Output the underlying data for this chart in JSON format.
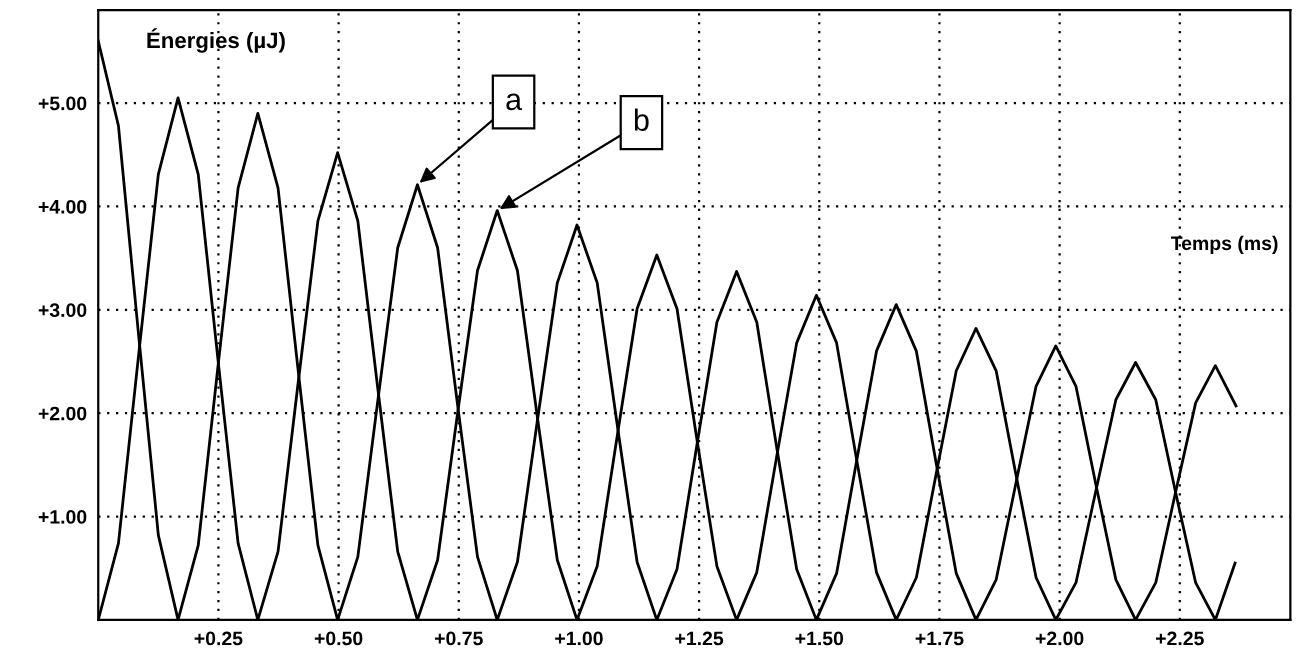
{
  "chart_data": {
    "type": "line",
    "ylabel": "Énergies (µJ)",
    "xlabel": "Temps (ms)",
    "xlim": [
      0,
      2.48
    ],
    "ylim": [
      0,
      5.9
    ],
    "xticks": [
      {
        "value": 0.25,
        "label": "+0.25"
      },
      {
        "value": 0.5,
        "label": "+0.50"
      },
      {
        "value": 0.75,
        "label": "+0.75"
      },
      {
        "value": 1.0,
        "label": "+1.00"
      },
      {
        "value": 1.25,
        "label": "+1.25"
      },
      {
        "value": 1.5,
        "label": "+1.50"
      },
      {
        "value": 1.75,
        "label": "+1.75"
      },
      {
        "value": 2.0,
        "label": "+2.00"
      },
      {
        "value": 2.25,
        "label": "+2.25"
      }
    ],
    "yticks": [
      {
        "value": 1,
        "label": "+1.00"
      },
      {
        "value": 2,
        "label": "+2.00"
      },
      {
        "value": 3,
        "label": "+3.00"
      },
      {
        "value": 4,
        "label": "+4.00"
      },
      {
        "value": 5,
        "label": "+5.00"
      }
    ],
    "grid": true,
    "marker": "none",
    "line_style": "solid",
    "annotations": [
      {
        "text": "a",
        "x": 0.664,
        "y": 4.21
      },
      {
        "text": "b",
        "x": 0.83,
        "y": 3.96
      }
    ],
    "series": [
      {
        "color": "#000000",
        "x": [
          0,
          0.042,
          0.083,
          0.125,
          0.166,
          0.208,
          0.249,
          0.291,
          0.332,
          0.374,
          0.415,
          0.457,
          0.498,
          0.54,
          0.581,
          0.623,
          0.664,
          0.706,
          0.747,
          0.789,
          0.83,
          0.872,
          0.913,
          0.955,
          0.996,
          1.038,
          1.079,
          1.121,
          1.162,
          1.204,
          1.245,
          1.287,
          1.328,
          1.37,
          1.411,
          1.453,
          1.494,
          1.536,
          1.577,
          1.619,
          1.66,
          1.702,
          1.743,
          1.785,
          1.826,
          1.868,
          1.909,
          1.951,
          1.992,
          2.034,
          2.075,
          2.117,
          2.158,
          2.2,
          2.241,
          2.283,
          2.324,
          2.367
        ],
        "values": [
          5.6,
          4.78,
          2.8,
          0.82,
          0,
          0.72,
          2.45,
          4.18,
          4.9,
          4.18,
          2.45,
          0.72,
          0,
          0.61,
          2.1,
          3.6,
          4.21,
          3.6,
          2.1,
          0.61,
          0,
          0.56,
          1.91,
          3.26,
          3.82,
          3.26,
          1.91,
          0.56,
          0,
          0.49,
          1.68,
          2.88,
          3.37,
          2.88,
          1.68,
          0.49,
          0,
          0.45,
          1.52,
          2.6,
          3.05,
          2.6,
          1.52,
          0.45,
          0,
          0.39,
          1.32,
          2.26,
          2.65,
          2.26,
          1.32,
          0.39,
          0,
          0.36,
          1.23,
          2.1,
          2.46,
          2.07
        ]
      },
      {
        "color": "#000000",
        "x": [
          0,
          0.042,
          0.083,
          0.125,
          0.166,
          0.208,
          0.249,
          0.291,
          0.332,
          0.374,
          0.415,
          0.457,
          0.498,
          0.54,
          0.581,
          0.623,
          0.664,
          0.706,
          0.747,
          0.789,
          0.83,
          0.872,
          0.913,
          0.955,
          0.996,
          1.038,
          1.079,
          1.121,
          1.162,
          1.204,
          1.245,
          1.287,
          1.328,
          1.37,
          1.411,
          1.453,
          1.494,
          1.536,
          1.577,
          1.619,
          1.66,
          1.702,
          1.743,
          1.785,
          1.826,
          1.868,
          1.909,
          1.951,
          1.992,
          2.034,
          2.075,
          2.117,
          2.158,
          2.2,
          2.241,
          2.283,
          2.324,
          2.365
        ],
        "values": [
          0,
          0.74,
          2.52,
          4.31,
          5.05,
          4.31,
          2.52,
          0.74,
          0,
          0.66,
          2.26,
          3.86,
          4.52,
          3.86,
          2.26,
          0.66,
          0,
          0.58,
          1.98,
          3.38,
          3.96,
          3.38,
          1.98,
          0.58,
          0,
          0.52,
          1.76,
          3.01,
          3.53,
          3.01,
          1.76,
          0.52,
          0,
          0.46,
          1.57,
          2.68,
          3.14,
          2.68,
          1.57,
          0.46,
          0,
          0.41,
          1.41,
          2.41,
          2.82,
          2.41,
          1.41,
          0.41,
          0,
          0.36,
          1.24,
          2.13,
          2.49,
          2.13,
          1.24,
          0.36,
          0,
          0.55
        ]
      }
    ]
  }
}
